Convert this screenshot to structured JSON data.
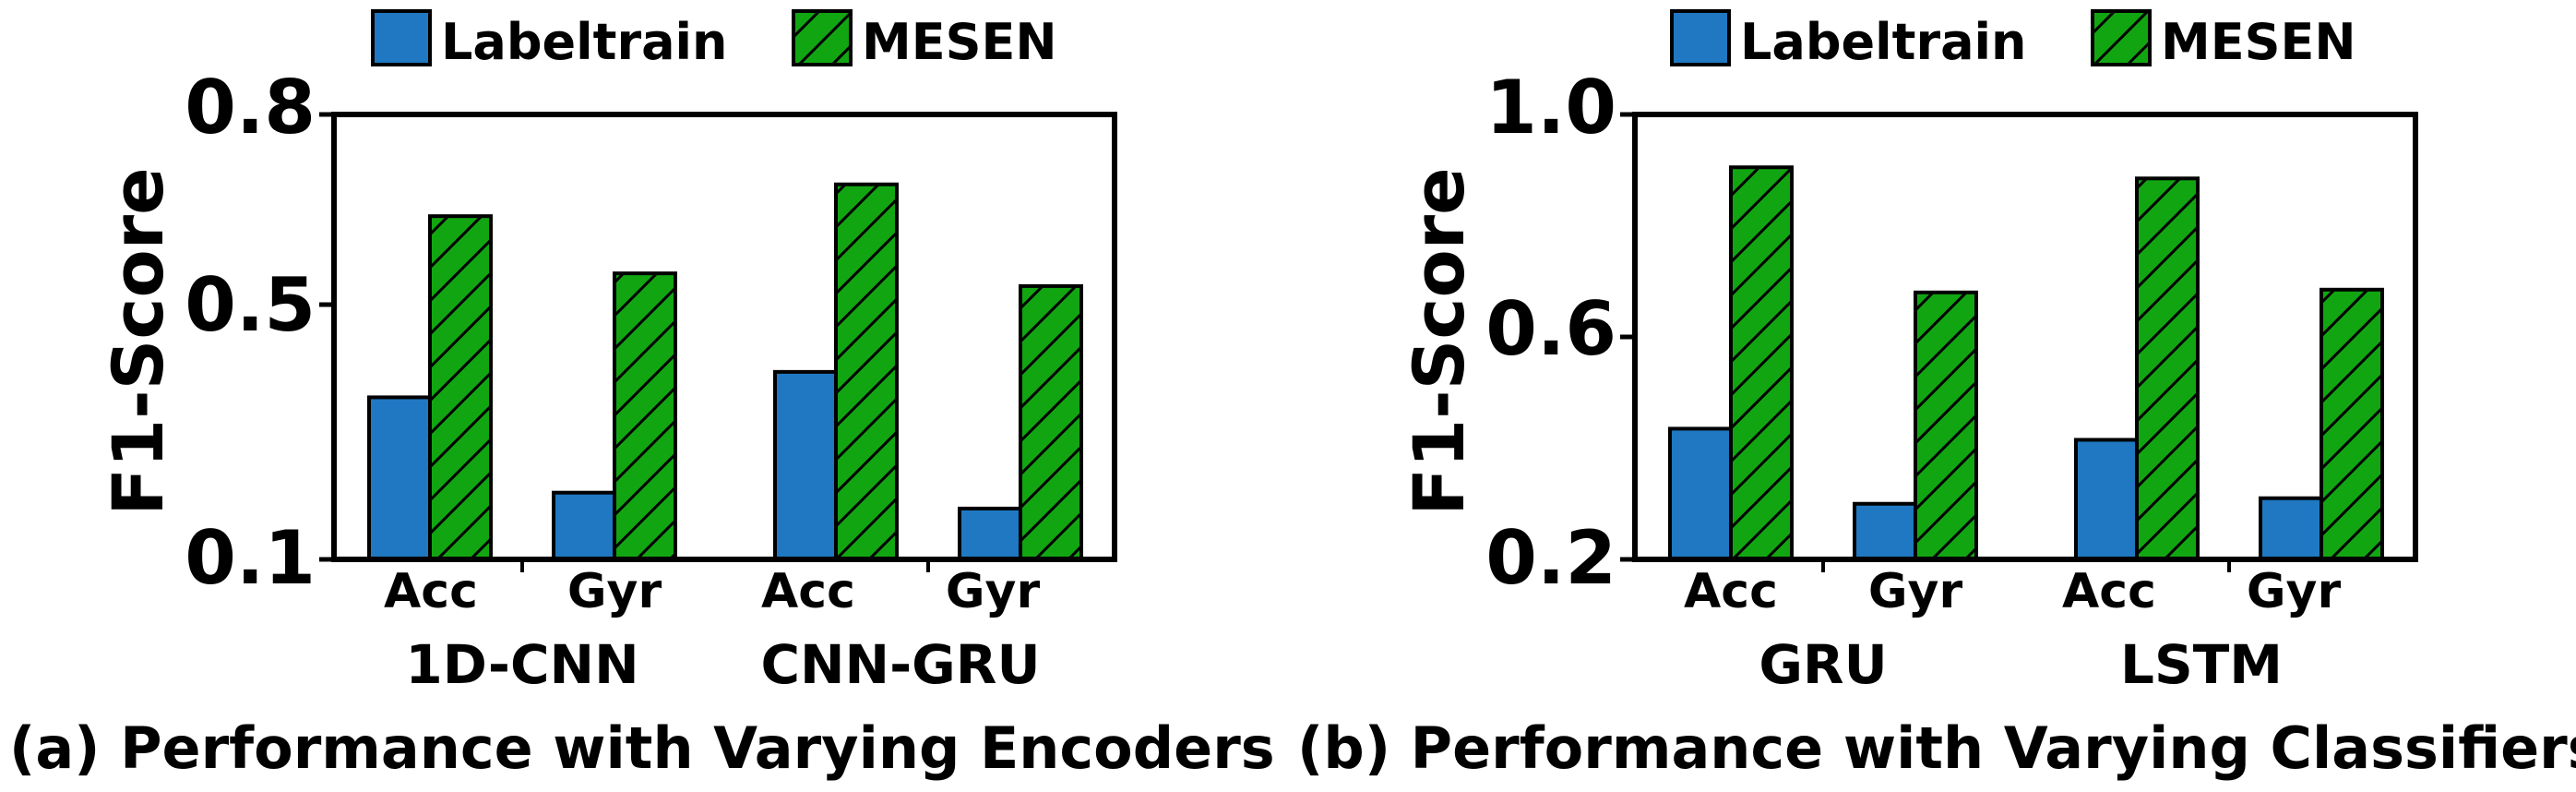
{
  "chart_data": [
    {
      "type": "bar",
      "caption": "(a) Performance with Varying Encoders",
      "ylabel": "F1-Score",
      "ylim": [
        0.1,
        0.8
      ],
      "yticks": [
        "0.1",
        "0.5",
        "0.8"
      ],
      "groups": [
        {
          "name": "1D-CNN",
          "categories": [
            "Acc",
            "Gyr"
          ]
        },
        {
          "name": "CNN-GRU",
          "categories": [
            "Acc",
            "Gyr"
          ]
        }
      ],
      "legend": {
        "position": "top-center"
      },
      "series": [
        {
          "name": "Labeltrain",
          "color": "#1f78c1",
          "pattern": "solid",
          "values": [
            0.355,
            0.205,
            0.395,
            0.18
          ]
        },
        {
          "name": "MESEN",
          "color": "#12a512",
          "pattern": "hatch",
          "values": [
            0.64,
            0.55,
            0.69,
            0.53
          ]
        }
      ]
    },
    {
      "type": "bar",
      "caption": "(b) Performance with Varying Classifiers",
      "ylabel": "F1-Score",
      "ylim": [
        0.2,
        1.0
      ],
      "yticks": [
        "0.2",
        "0.6",
        "1.0"
      ],
      "groups": [
        {
          "name": "GRU",
          "categories": [
            "Acc",
            "Gyr"
          ]
        },
        {
          "name": "LSTM",
          "categories": [
            "Acc",
            "Gyr"
          ]
        }
      ],
      "legend": {
        "position": "top-center"
      },
      "series": [
        {
          "name": "Labeltrain",
          "color": "#1f78c1",
          "pattern": "solid",
          "values": [
            0.435,
            0.3,
            0.415,
            0.31
          ]
        },
        {
          "name": "MESEN",
          "color": "#12a512",
          "pattern": "hatch",
          "values": [
            0.905,
            0.68,
            0.885,
            0.685
          ]
        }
      ]
    }
  ]
}
